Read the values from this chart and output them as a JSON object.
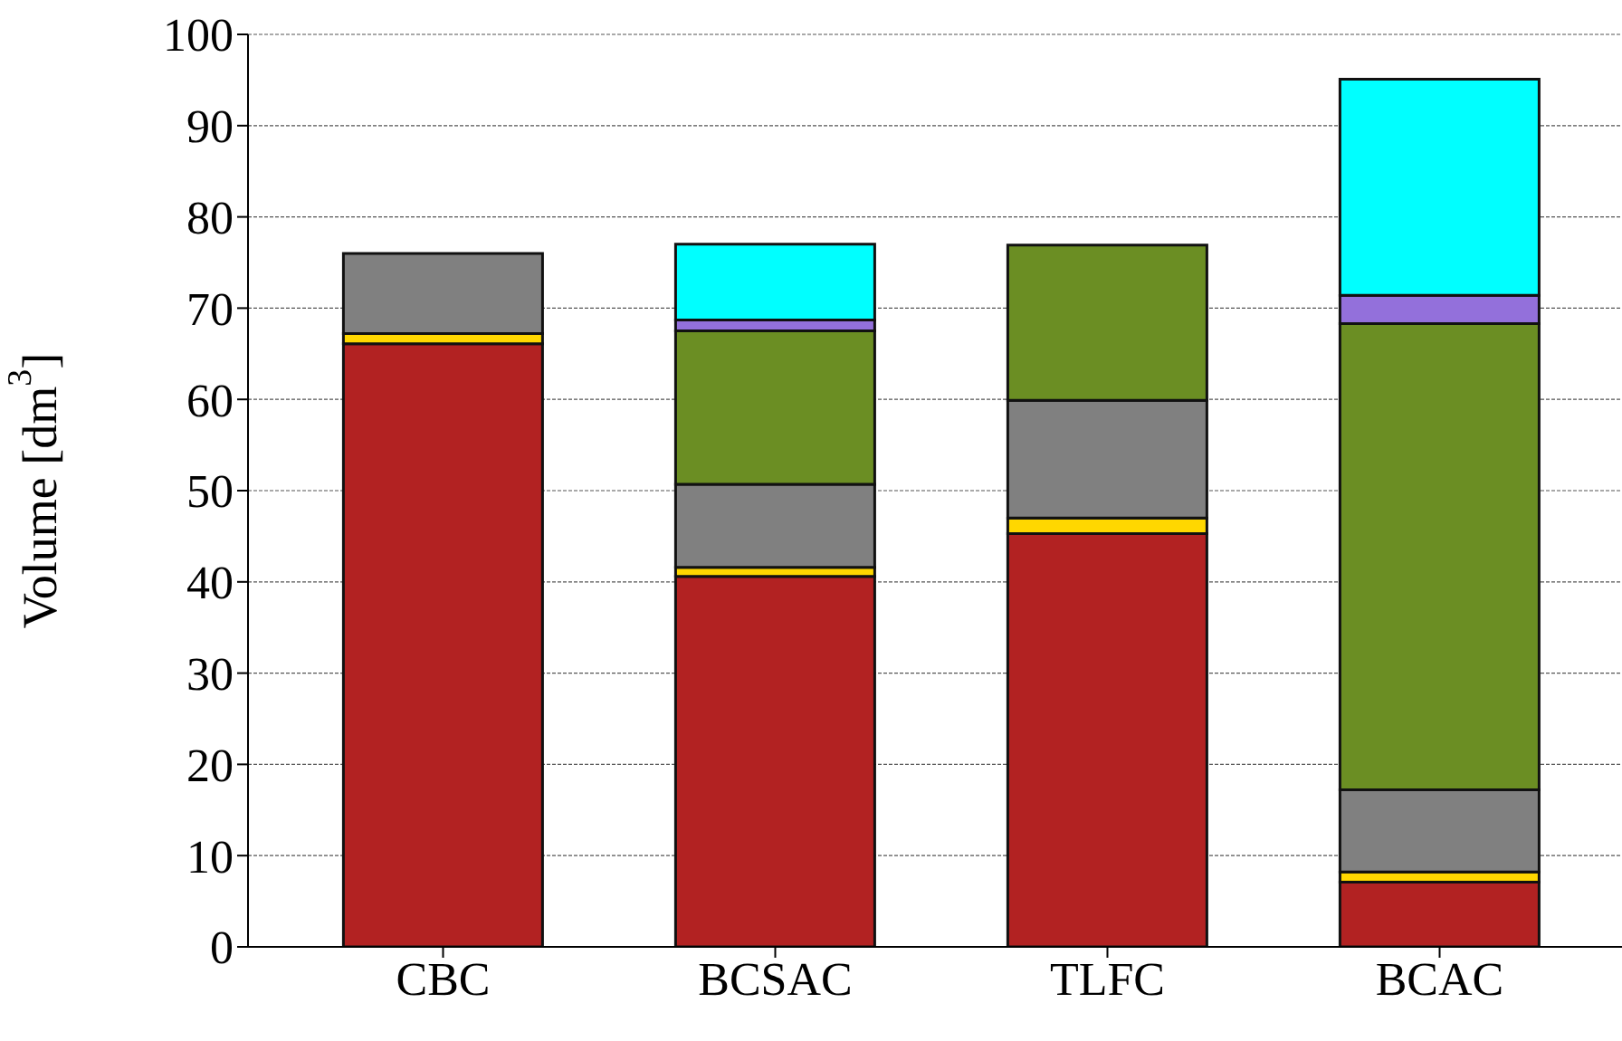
{
  "chart_data": {
    "type": "bar",
    "stacked": true,
    "ylabel": "Volume [dm$^{3}$]",
    "categories": [
      "CBC",
      "BCSAC",
      "TLFC",
      "BCAC"
    ],
    "series": [
      {
        "color": "#b22222",
        "values": [
          66.1,
          40.6,
          45.3,
          7.1
        ]
      },
      {
        "color": "#ffd700",
        "values": [
          1.1,
          1.0,
          1.7,
          1.1
        ]
      },
      {
        "color": "#808080",
        "values": [
          8.8,
          9.1,
          12.9,
          9.0
        ]
      },
      {
        "color": "#6b8e23",
        "values": [
          0,
          16.8,
          17.0,
          51.1
        ]
      },
      {
        "color": "#9370db",
        "values": [
          0,
          1.2,
          0,
          3.1
        ]
      },
      {
        "color": "#00ffff",
        "values": [
          0,
          8.3,
          0,
          23.7
        ]
      }
    ],
    "ylim": [
      0,
      100
    ],
    "yticks": [
      0,
      10,
      20,
      30,
      40,
      50,
      60,
      70,
      80,
      90,
      100
    ],
    "grid": "y",
    "legend": false
  }
}
